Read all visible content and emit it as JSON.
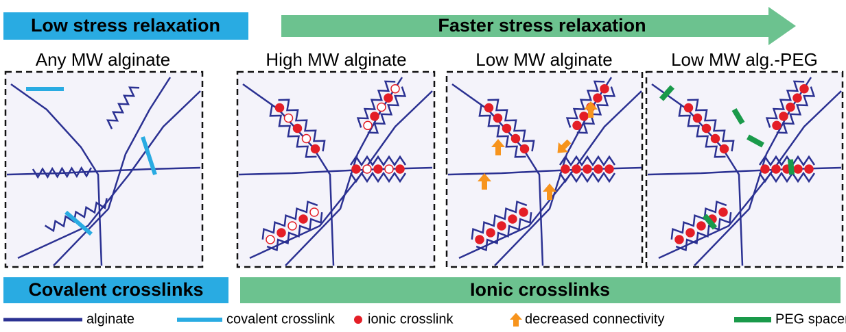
{
  "header": {
    "left_label": "Low stress relaxation",
    "arrow_label": "Faster stress relaxation"
  },
  "panels": [
    {
      "title": "Any MW alginate"
    },
    {
      "title": "High MW alginate"
    },
    {
      "title": "Low MW alginate"
    },
    {
      "title": "Low MW alg.-PEG"
    }
  ],
  "footer": {
    "left_label": "Covalent crosslinks",
    "right_label": "Ionic crosslinks"
  },
  "legend": {
    "items": [
      {
        "label": "alginate"
      },
      {
        "label": "covalent crosslink"
      },
      {
        "label": "ionic crosslink"
      },
      {
        "label": "decreased connectivity"
      },
      {
        "label": "PEG spacer"
      }
    ]
  }
}
